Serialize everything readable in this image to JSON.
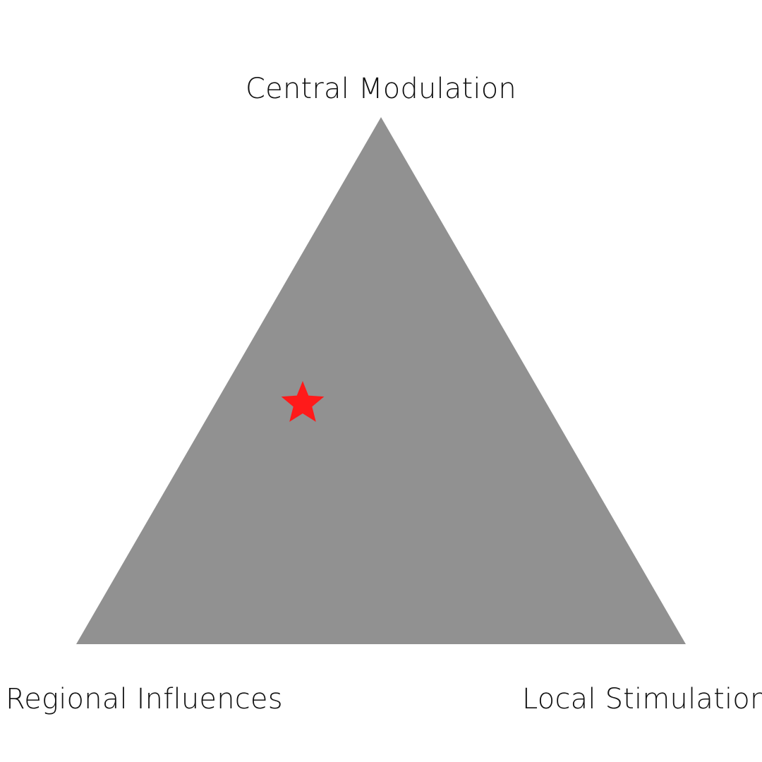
{
  "diagram": {
    "vertices": {
      "top_label": "Central Modulation",
      "bottom_left_label": "Regional Influences",
      "bottom_right_label": "Local Stimulation"
    },
    "marker": {
      "shape": "star",
      "color": "#ff1a1a"
    },
    "colors": {
      "triangle_fill": "#919191",
      "label_text": "#111111",
      "background": "#ffffff"
    }
  }
}
